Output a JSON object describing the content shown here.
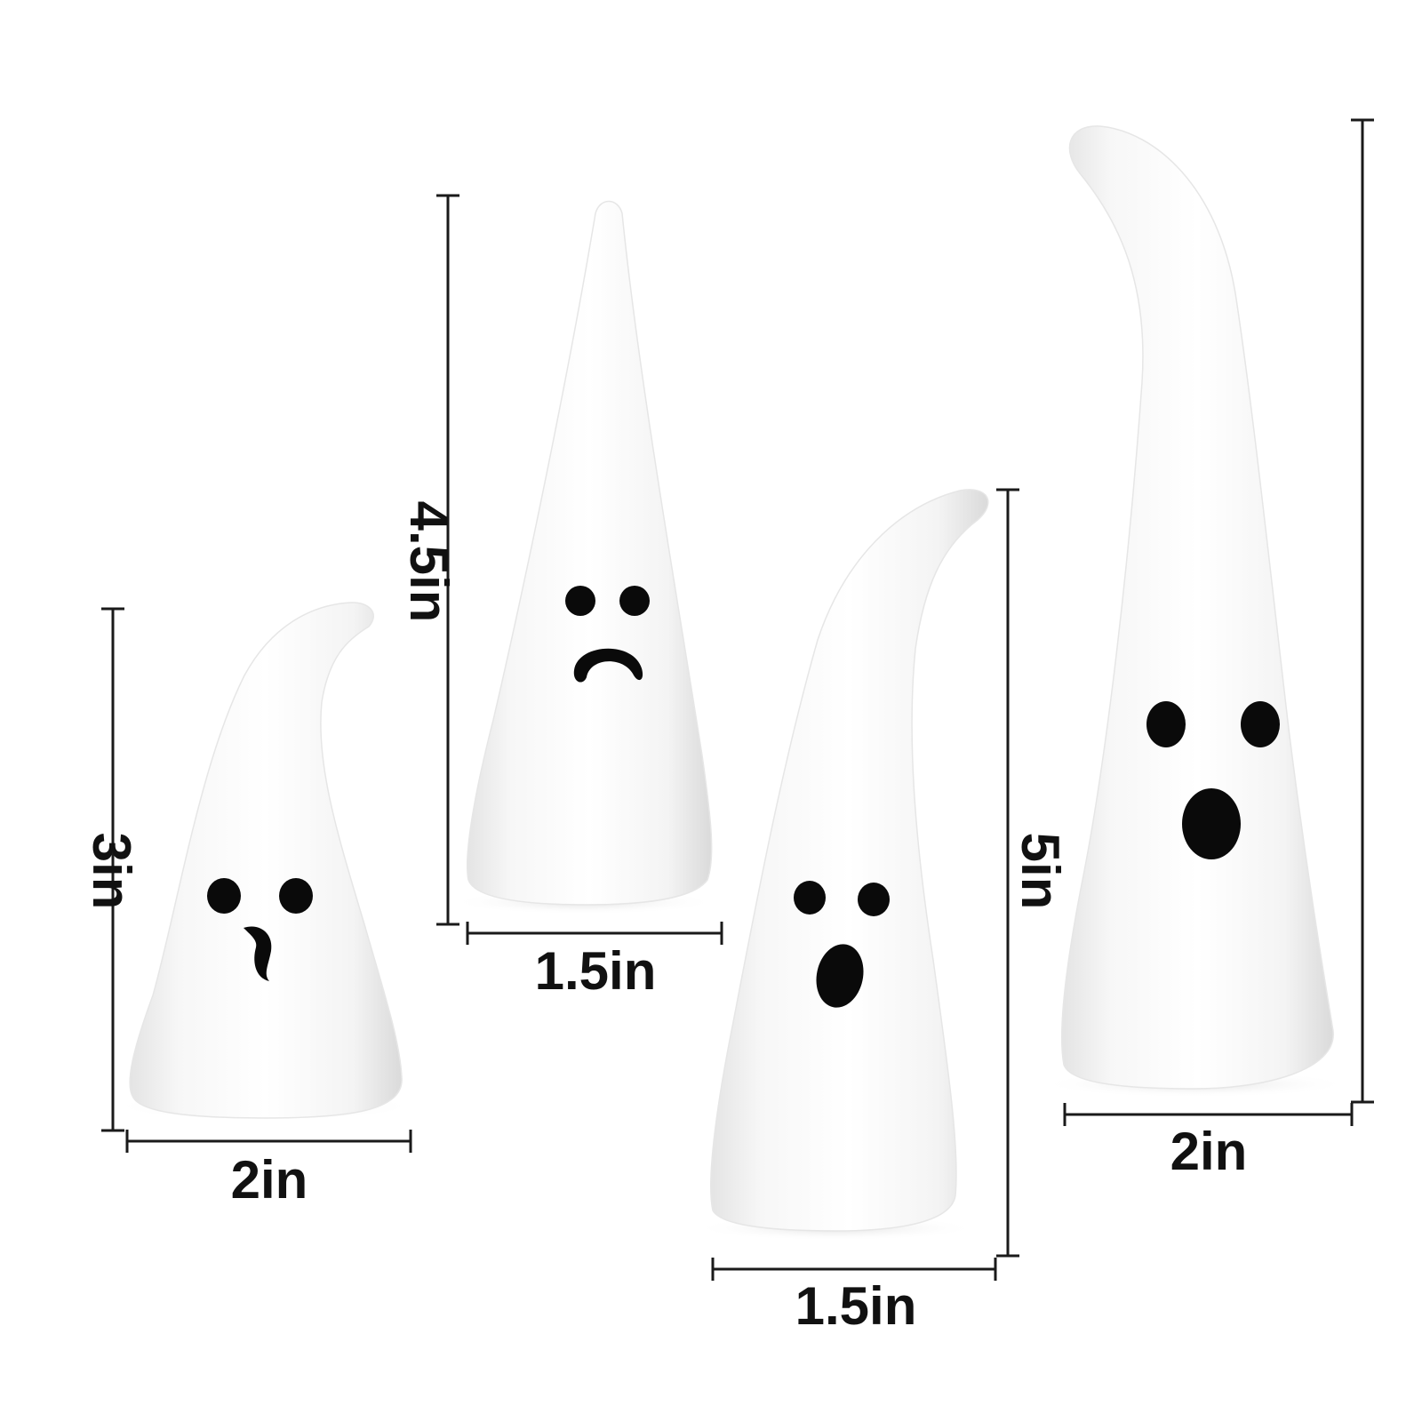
{
  "colors": {
    "background": "#ffffff",
    "ceramic_light": "#ffffff",
    "ceramic_shade": "#dcdcdc",
    "feature_black": "#0a0a0a",
    "dimension_text": "#111111"
  },
  "ghosts": [
    {
      "id": "small-bent-ghost",
      "expression": "smirk",
      "height_label": "3in",
      "width_label": "2in"
    },
    {
      "id": "tall-cone-ghost",
      "expression": "frown",
      "height_label": "4.5in",
      "width_label": "1.5in"
    },
    {
      "id": "medium-bent-ghost",
      "expression": "surprised",
      "height_label": "5in",
      "width_label": "1.5in"
    },
    {
      "id": "tallest-bent-ghost",
      "expression": "surprised",
      "height_label": "",
      "width_label": "2in"
    }
  ]
}
